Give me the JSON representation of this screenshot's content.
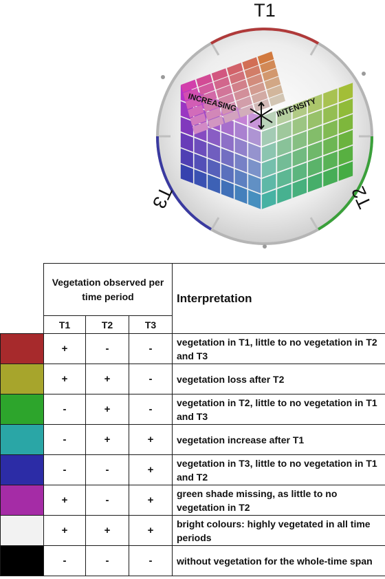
{
  "cube": {
    "arc_labels": {
      "t1": "T1",
      "t2": "T2",
      "t3": "T3"
    },
    "axis_label_left": "INCREASING",
    "axis_label_right": "INTENSITY",
    "colors": {
      "t1_arc": "#b03a3a",
      "t2_arc": "#3aa03a",
      "t3_arc": "#3a3aa0",
      "ring": "#b5b5b5"
    }
  },
  "table": {
    "group_header": "Vegetation observed per time period",
    "interpretation_header": "Interpretation",
    "time_headers": [
      "T1",
      "T2",
      "T3"
    ],
    "rows": [
      {
        "color": "#a72a2c",
        "t1": "+",
        "t2": "-",
        "t3": "-",
        "interpretation": "vegetation in T1, little to no vegetation in T2 and T3"
      },
      {
        "color": "#a7a52c",
        "t1": "+",
        "t2": "+",
        "t3": "-",
        "interpretation": "vegetation loss after T2"
      },
      {
        "color": "#2da52c",
        "t1": "-",
        "t2": "+",
        "t3": "-",
        "interpretation": "vegetation in T2, little to no vegetation in T1 and T3"
      },
      {
        "color": "#2aa6a6",
        "t1": "-",
        "t2": "+",
        "t3": "+",
        "interpretation": "vegetation increase after T1"
      },
      {
        "color": "#2c2ca6",
        "t1": "-",
        "t2": "-",
        "t3": "+",
        "interpretation": "vegetation in T3, little to no vegetation in T1 and T2"
      },
      {
        "color": "#a52ca6",
        "t1": "+",
        "t2": "-",
        "t3": "+",
        "interpretation": "green shade missing, as little to no vegetation in T2"
      },
      {
        "color": "#f2f2f2",
        "t1": "+",
        "t2": "+",
        "t3": "+",
        "interpretation": "bright colours: highly vegetated in all time periods"
      },
      {
        "color": "#000000",
        "t1": "-",
        "t2": "-",
        "t3": "-",
        "interpretation": "without vegetation for the whole-time span"
      }
    ]
  }
}
